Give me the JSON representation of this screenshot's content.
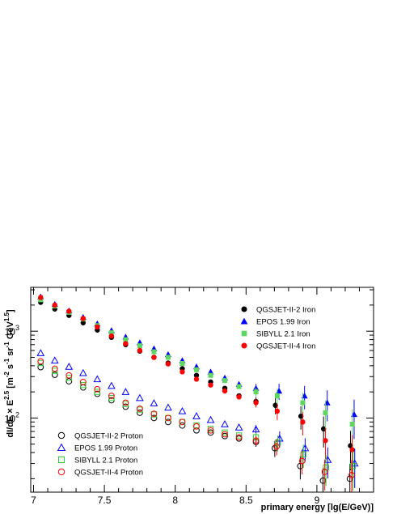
{
  "chart_data": {
    "type": "scatter",
    "xlabel": "primary energy [lg(E/GeV)]",
    "ylabel_parts": [
      "dI/dE × E",
      "2.5",
      " [m",
      "-2",
      " s",
      "-1",
      " sr",
      "-1",
      " GeV",
      "1.5",
      "]"
    ],
    "xlim": [
      6.98,
      9.4
    ],
    "ylim": [
      14,
      3200
    ],
    "yscale": "log",
    "x_ticks": [
      {
        "v": 7,
        "label": "7"
      },
      {
        "v": 7.5,
        "label": "7.5"
      },
      {
        "v": 8,
        "label": "8"
      },
      {
        "v": 8.5,
        "label": "8.5"
      },
      {
        "v": 9,
        "label": "9"
      }
    ],
    "y_ticks": [
      {
        "v": 100,
        "base": "10",
        "exp": "2"
      },
      {
        "v": 1000,
        "base": "10",
        "exp": "3"
      }
    ],
    "legend_iron": [
      "QGSJET-II-2 Iron",
      "EPOS 1.99 Iron",
      "SIBYLL 2.1 Iron",
      "QGSJET-II-4 Iron"
    ],
    "legend_proton": [
      "QGSJET-II-2 Proton",
      "EPOS 1.99 Proton",
      "SIBYLL 2.1 Proton",
      "QGSJET-II-4 Proton"
    ],
    "colors": {
      "black": "#000000",
      "blue": "#0000ff",
      "green": "#33cc33",
      "red": "#ff0000",
      "series_sibyll_iron": "#5fd65f"
    },
    "x": [
      7.05,
      7.15,
      7.25,
      7.35,
      7.45,
      7.55,
      7.65,
      7.75,
      7.85,
      7.95,
      8.05,
      8.15,
      8.25,
      8.35,
      8.45,
      8.57,
      8.72,
      8.9,
      9.06,
      9.25
    ],
    "series": [
      {
        "name": "QGSJET-II-2 Iron",
        "marker": "filled-circle",
        "color": "black",
        "values": [
          2150,
          1800,
          1520,
          1250,
          1030,
          850,
          700,
          590,
          500,
          430,
          370,
          310,
          260,
          220,
          180,
          155,
          140,
          105,
          75,
          48
        ]
      },
      {
        "name": "EPOS 1.99 Iron",
        "marker": "filled-triangle",
        "color": "blue",
        "values": [
          2500,
          2050,
          1720,
          1450,
          1220,
          1020,
          860,
          740,
          630,
          540,
          460,
          390,
          340,
          290,
          245,
          220,
          205,
          180,
          150,
          110
        ]
      },
      {
        "name": "SIBYLL 2.1 Iron",
        "marker": "filled-square",
        "color": "series_sibyll_iron",
        "values": [
          2300,
          1950,
          1650,
          1380,
          1160,
          960,
          800,
          680,
          580,
          500,
          425,
          360,
          310,
          270,
          230,
          200,
          180,
          150,
          115,
          85
        ]
      },
      {
        "name": "QGSJET-II-4 Iron",
        "marker": "filled-circle",
        "color": "red",
        "values": [
          2450,
          2000,
          1700,
          1400,
          1120,
          880,
          720,
          600,
          500,
          420,
          340,
          280,
          240,
          205,
          175,
          150,
          120,
          90,
          55,
          43
        ]
      },
      {
        "name": "QGSJET-II-2 Proton",
        "marker": "open-circle",
        "color": "black",
        "values": [
          385,
          315,
          265,
          225,
          190,
          160,
          135,
          115,
          100,
          90,
          82,
          72,
          68,
          62,
          58,
          53,
          45,
          28,
          19,
          20
        ]
      },
      {
        "name": "EPOS 1.99 Proton",
        "marker": "open-triangle",
        "color": "blue",
        "values": [
          560,
          460,
          390,
          330,
          280,
          235,
          200,
          170,
          148,
          132,
          120,
          105,
          95,
          85,
          78,
          74,
          58,
          45,
          33,
          30
        ]
      },
      {
        "name": "SIBYLL 2.1 Proton",
        "marker": "open-square",
        "color": "green",
        "values": [
          430,
          350,
          290,
          240,
          200,
          170,
          145,
          125,
          110,
          100,
          90,
          82,
          75,
          68,
          63,
          60,
          52,
          38,
          27,
          28
        ]
      },
      {
        "name": "QGSJET-II-4 Proton",
        "marker": "open-circle",
        "color": "red",
        "values": [
          450,
          370,
          310,
          260,
          215,
          180,
          150,
          128,
          112,
          100,
          90,
          80,
          72,
          65,
          60,
          55,
          47,
          32,
          24,
          22
        ]
      }
    ]
  }
}
